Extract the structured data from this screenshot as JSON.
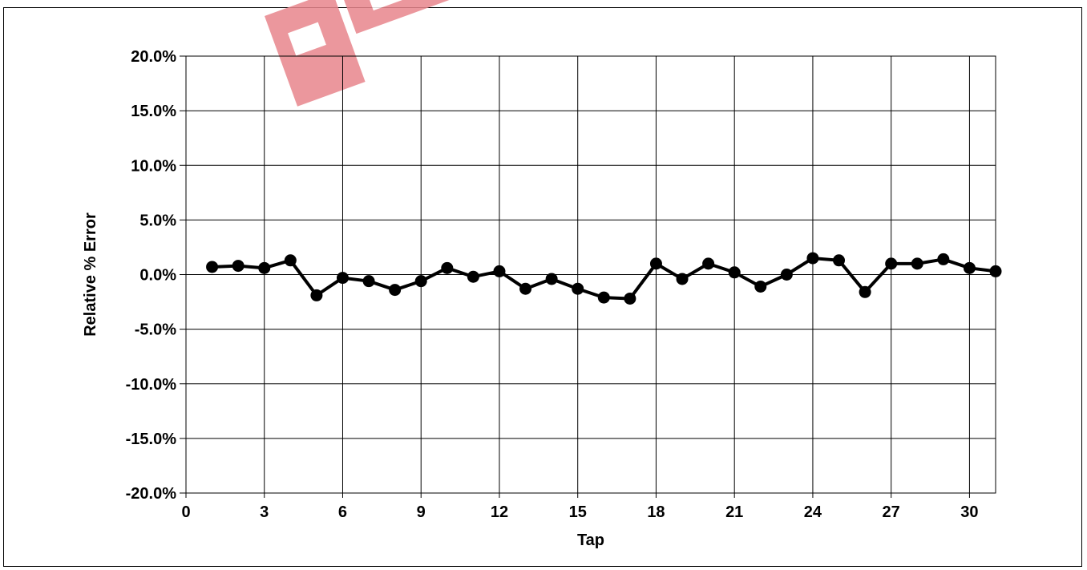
{
  "chart_data": {
    "type": "line",
    "title": "",
    "xlabel": "Tap",
    "ylabel": "Relative % Error",
    "xlim": [
      0,
      31
    ],
    "ylim": [
      -20,
      20
    ],
    "grid": true,
    "x_ticks": [
      0,
      3,
      6,
      9,
      12,
      15,
      18,
      21,
      24,
      27,
      30
    ],
    "x_tick_labels": [
      "0",
      "3",
      "6",
      "9",
      "12",
      "15",
      "18",
      "21",
      "24",
      "27",
      "30"
    ],
    "y_ticks": [
      -20,
      -15,
      -10,
      -5,
      0,
      5,
      10,
      15,
      20
    ],
    "y_tick_labels": [
      "-20.0%",
      "-15.0%",
      "-10.0%",
      "-5.0%",
      "0.0%",
      "5.0%",
      "10.0%",
      "15.0%",
      "20.0%"
    ],
    "series": [
      {
        "color": "#000000",
        "marker": "circle",
        "x": [
          1,
          2,
          3,
          4,
          5,
          6,
          7,
          8,
          9,
          10,
          11,
          12,
          13,
          14,
          15,
          16,
          17,
          18,
          19,
          20,
          21,
          22,
          23,
          24,
          25,
          26,
          27,
          28,
          29,
          30,
          31
        ],
        "y": [
          0.7,
          0.8,
          0.6,
          1.3,
          -1.9,
          -0.3,
          -0.6,
          -1.4,
          -0.6,
          0.6,
          -0.2,
          0.3,
          -1.3,
          -0.4,
          -1.3,
          -2.1,
          -2.2,
          1.0,
          -0.4,
          1.0,
          0.2,
          -1.1,
          0.0,
          1.5,
          1.3,
          -1.6,
          1.0,
          1.0,
          1.4,
          0.6,
          0.3
        ]
      }
    ]
  },
  "watermark": {
    "color": "#e8868c"
  }
}
